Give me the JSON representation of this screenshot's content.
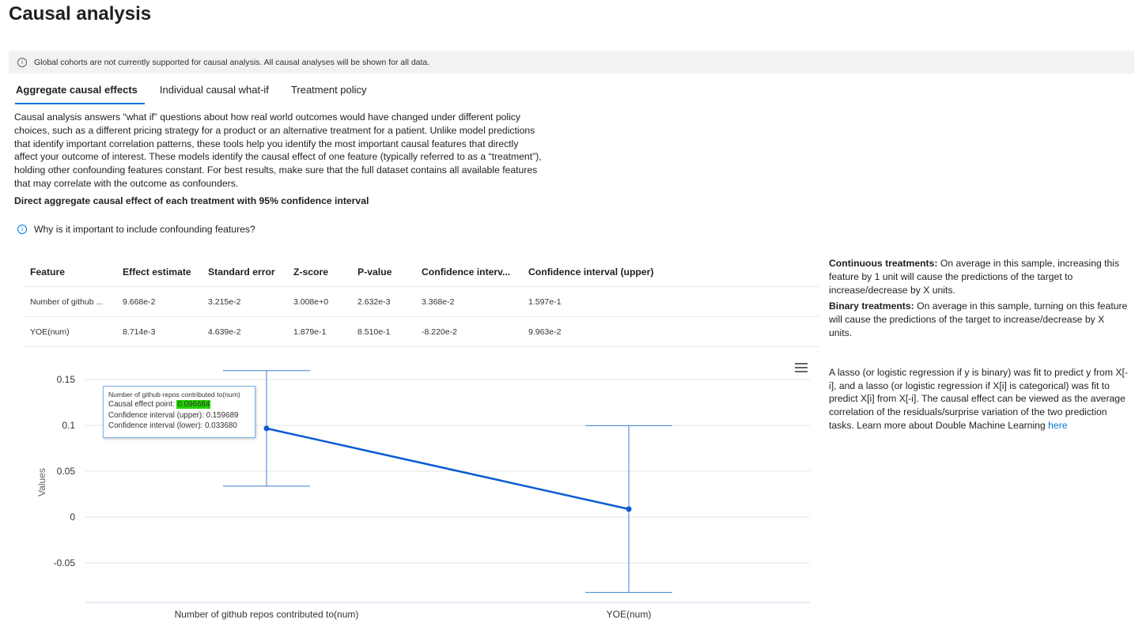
{
  "page": {
    "title": "Causal analysis"
  },
  "banner": {
    "text": "Global cohorts are not currently supported for causal analysis. All causal analyses will be shown for all data."
  },
  "tabs": [
    {
      "label": "Aggregate causal effects",
      "active": true
    },
    {
      "label": "Individual causal what-if",
      "active": false
    },
    {
      "label": "Treatment policy",
      "active": false
    }
  ],
  "description": "Causal analysis answers “what if” questions about how real world outcomes would have changed under different policy choices, such as a different pricing strategy for a product or an alternative treatment for a patient. Unlike model predictions that identify important correlation patterns, these tools help you identify the most important causal features that directly affect your outcome of interest. These models identify the causal effect of one feature (typically referred to as a “treatment”), holding other confounding features constant. For best results, make sure that the full dataset contains all available features that may correlate with the outcome as confounders.",
  "subheading": "Direct aggregate causal effect of each treatment with 95% confidence interval",
  "why_link": "Why is it important to include confounding features?",
  "table": {
    "headers": [
      "Feature",
      "Effect estimate",
      "Standard error",
      "Z-score",
      "P-value",
      "Confidence interv...",
      "Confidence interval (upper)"
    ],
    "rows": [
      [
        "Number of github ...",
        "9.668e-2",
        "3.215e-2",
        "3.008e+0",
        "2.632e-3",
        "3.368e-2",
        "1.597e-1"
      ],
      [
        "YOE(num)",
        "8.714e-3",
        "4.639e-2",
        "1.879e-1",
        "8.510e-1",
        "-8.220e-2",
        "9.963e-2"
      ]
    ]
  },
  "right_panel": {
    "continuous_label": "Continuous treatments:",
    "continuous_text": " On average in this sample, increasing this feature by 1 unit will cause the predictions of the target to increase/decrease by X units.",
    "binary_label": "Binary treatments:",
    "binary_text": " On average in this sample, turning on this feature will cause the predictions of the target to increase/decrease by X units.",
    "lasso_text": "A lasso (or logistic regression if y is binary) was fit to predict y from X[-i], and a lasso (or logistic regression if X[i] is categorical) was fit to predict X[i] from X[-i]. The causal effect can be viewed as the average correlation of the residuals/surprise variation of the two prediction tasks. Learn more about Double Machine Learning ",
    "here_link": "here"
  },
  "tooltip": {
    "title": "Number of github repos contributed to(num)",
    "point_label": "Causal effect point: ",
    "point_value": "0.096684",
    "upper": "Confidence interval (upper): 0.159689",
    "lower": "Confidence interval (lower): 0.033680"
  },
  "chart_data": {
    "type": "line",
    "ylabel": "Values",
    "xlabel": "",
    "categories": [
      "Number of github repos contributed to(num)",
      "YOE(num)"
    ],
    "series": [
      {
        "values": [
          0.096684,
          0.008714
        ],
        "lower": [
          0.03368,
          -0.0822
        ],
        "upper": [
          0.159689,
          0.09963
        ]
      }
    ],
    "ylim": [
      -0.1,
      0.17
    ],
    "yticks": [
      0.15,
      0.1,
      0.05,
      0,
      -0.05
    ],
    "ytick_labels": [
      "0.15",
      "0.1",
      "0.05",
      "0",
      "-0.05"
    ],
    "line_color": "#0b5bd3",
    "errorbar_color": "#3d7ed9",
    "grid": true
  }
}
